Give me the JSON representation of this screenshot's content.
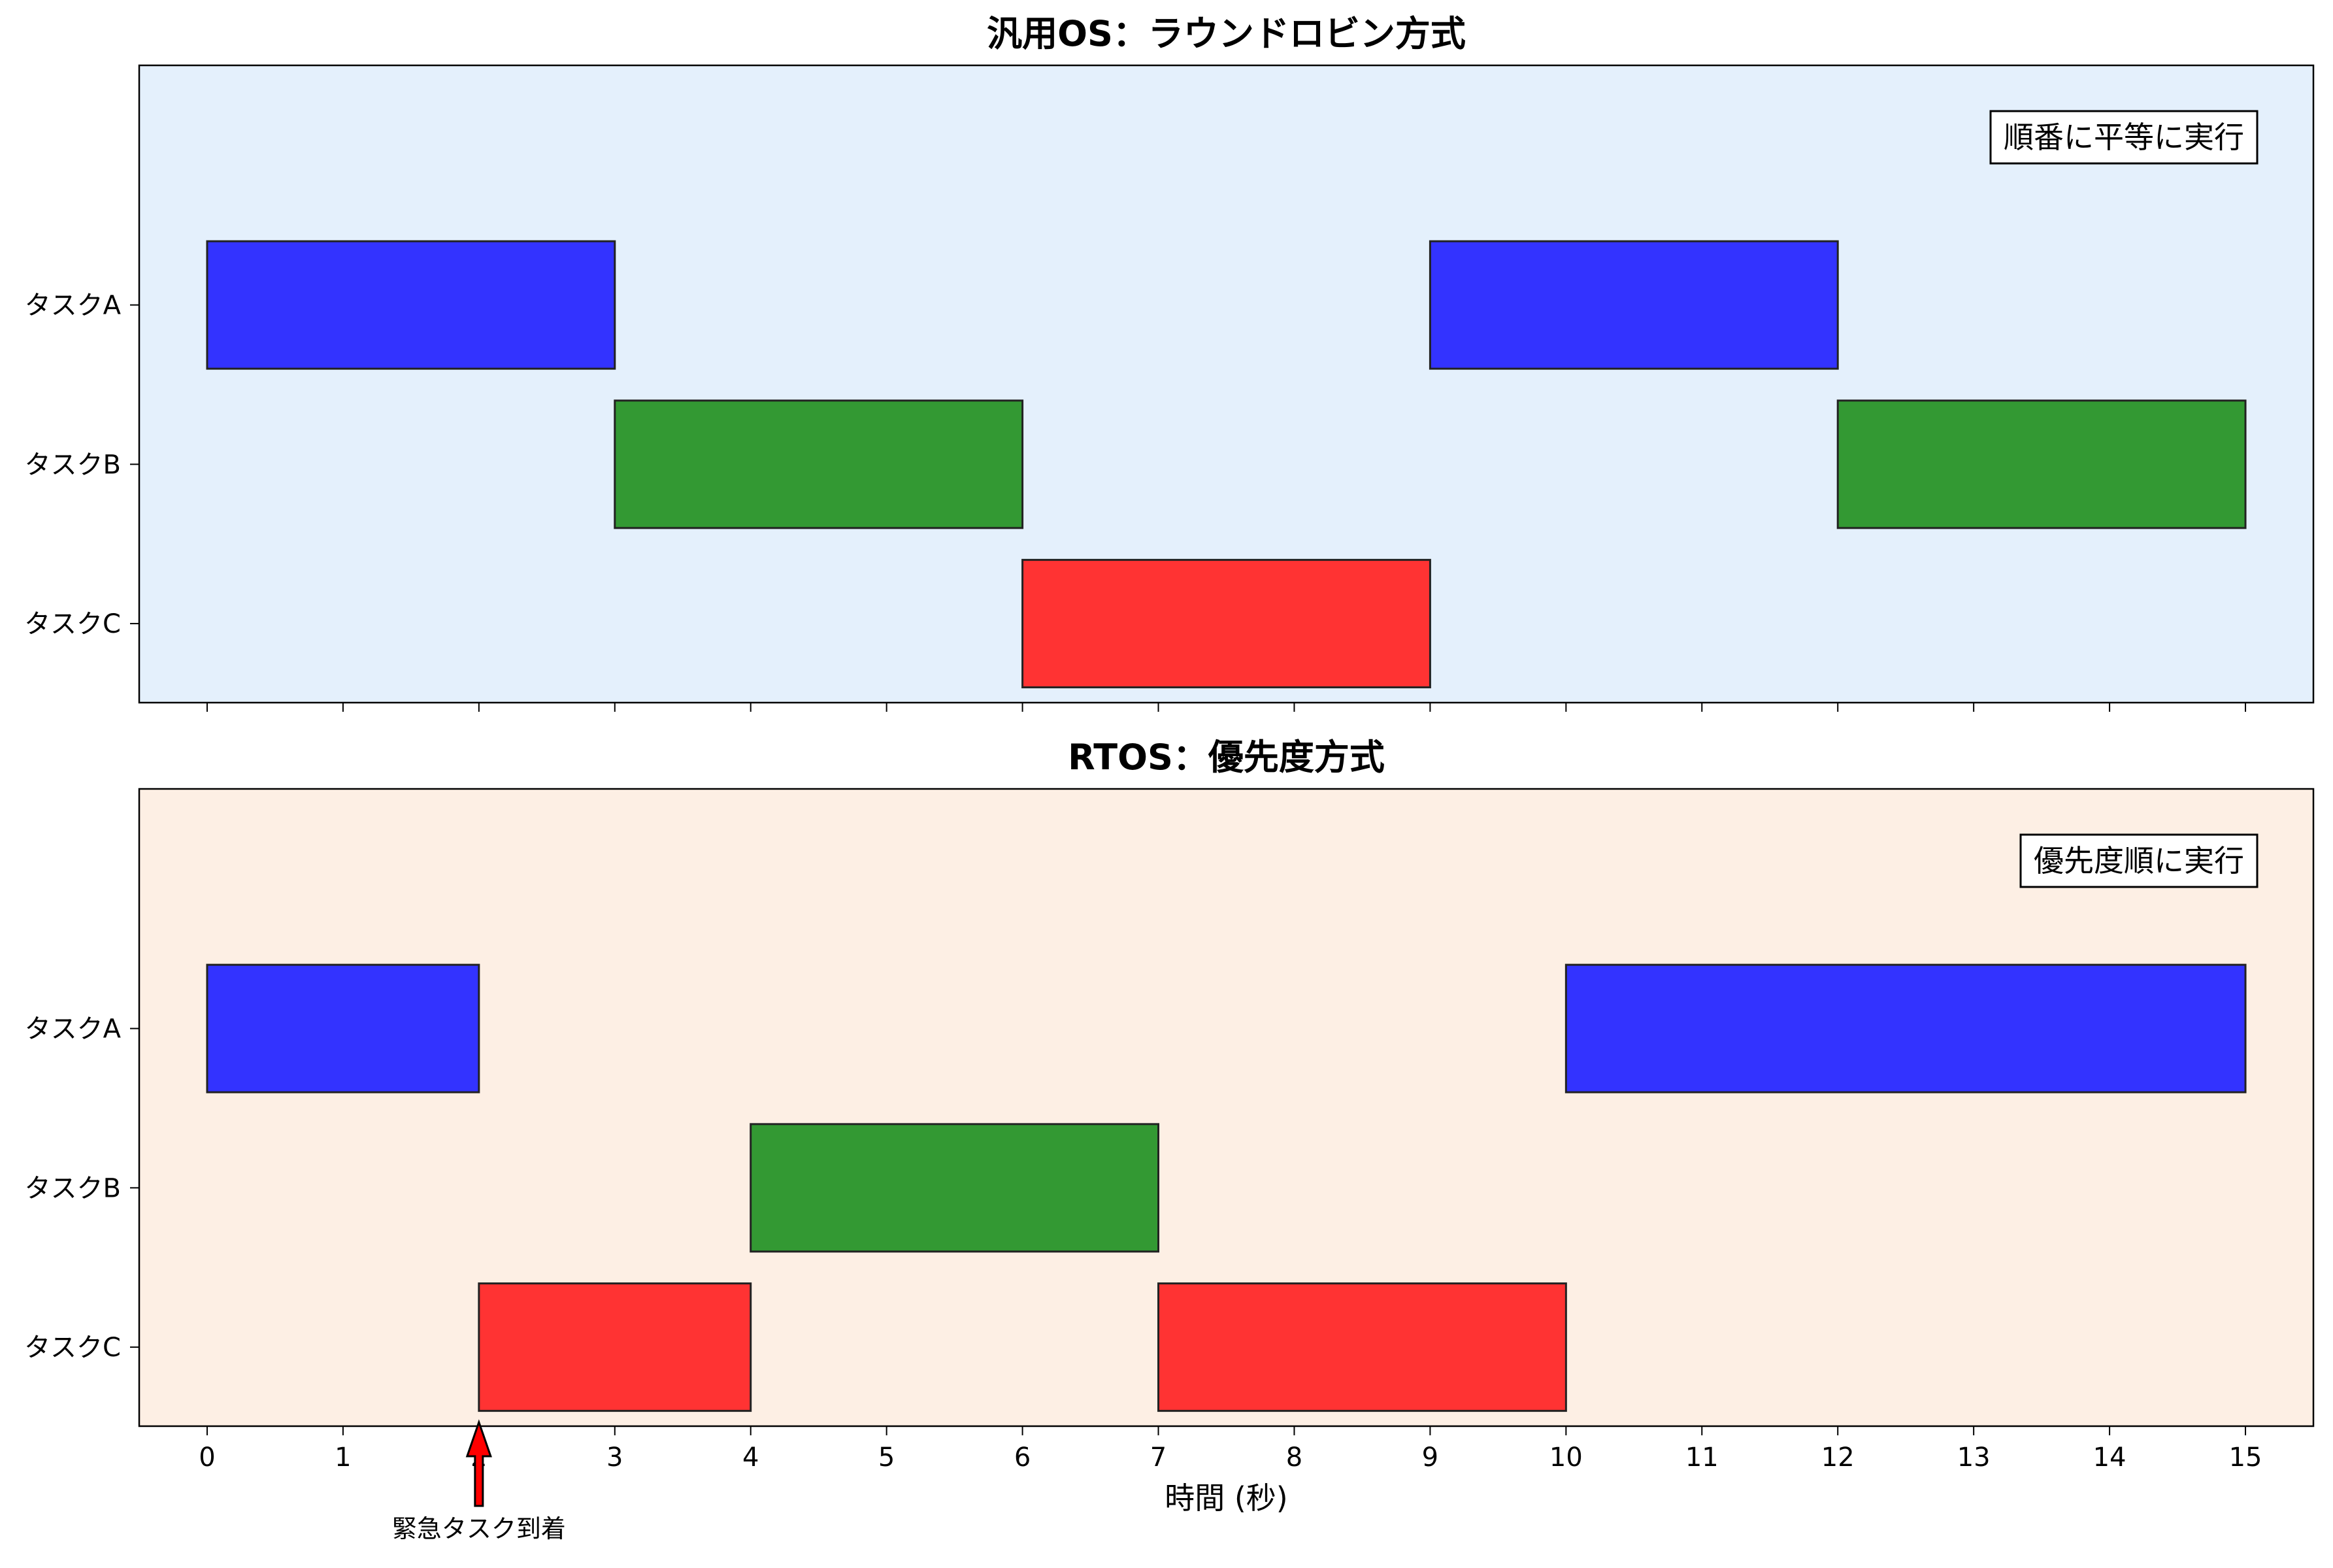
{
  "chart_data": [
    {
      "type": "gantt",
      "title": "汎用OS：ラウンドロビン方式",
      "annotation_box": "順番に平等に実行",
      "background_color": "#e4f0fc",
      "tasks": [
        "タスクA",
        "タスクB",
        "タスクC"
      ],
      "task_colors": {
        "タスクA": "#3333ff",
        "タスクB": "#339933",
        "タスクC": "#ff3333"
      },
      "bars": [
        {
          "task": "タスクA",
          "start": 0,
          "end": 3
        },
        {
          "task": "タスクB",
          "start": 3,
          "end": 6
        },
        {
          "task": "タスクC",
          "start": 6,
          "end": 9
        },
        {
          "task": "タスクA",
          "start": 9,
          "end": 12
        },
        {
          "task": "タスクB",
          "start": 12,
          "end": 15
        }
      ],
      "xlim": [
        -0.5,
        15.5
      ],
      "xticks": [
        0,
        1,
        2,
        3,
        4,
        5,
        6,
        7,
        8,
        9,
        10,
        11,
        12,
        13,
        14,
        15
      ],
      "show_x_tick_labels": false
    },
    {
      "type": "gantt",
      "title": "RTOS：優先度方式",
      "annotation_box": "優先度順に実行",
      "background_color": "#fdefe4",
      "tasks": [
        "タスクA",
        "タスクB",
        "タスクC"
      ],
      "task_colors": {
        "タスクA": "#3333ff",
        "タスクB": "#339933",
        "タスクC": "#ff3333"
      },
      "bars": [
        {
          "task": "タスクA",
          "start": 0,
          "end": 2
        },
        {
          "task": "タスクC",
          "start": 2,
          "end": 4
        },
        {
          "task": "タスクB",
          "start": 4,
          "end": 7
        },
        {
          "task": "タスクC",
          "start": 7,
          "end": 10
        },
        {
          "task": "タスクA",
          "start": 10,
          "end": 15
        }
      ],
      "xlim": [
        -0.5,
        15.5
      ],
      "xticks": [
        0,
        1,
        2,
        3,
        4,
        5,
        6,
        7,
        8,
        9,
        10,
        11,
        12,
        13,
        14,
        15
      ],
      "xlabel": "時間 (秒)",
      "show_x_tick_labels": true,
      "arrow_annotation": {
        "text": "緊急タスク到着",
        "x": 2,
        "color": "#ff0000"
      }
    }
  ]
}
